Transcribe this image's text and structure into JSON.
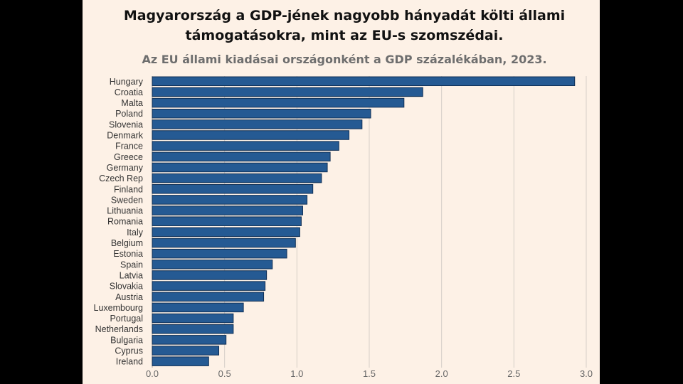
{
  "header": {
    "title_line1": "Magyarország a GDP-jének nagyobb hányadát költi állami",
    "title_line2": "támogatásokra, mint az EU-s szomszédai.",
    "subtitle": "Az EU állami kiadásai országonként a GDP százalékában, 2023."
  },
  "chart_data": {
    "type": "bar",
    "orientation": "horizontal",
    "categories": [
      "Hungary",
      "Croatia",
      "Malta",
      "Poland",
      "Slovenia",
      "Denmark",
      "France",
      "Greece",
      "Germany",
      "Czech Rep",
      "Finland",
      "Sweden",
      "Lithuania",
      "Romania",
      "Italy",
      "Belgium",
      "Estonia",
      "Spain",
      "Latvia",
      "Slovakia",
      "Austria",
      "Luxembourg",
      "Portugal",
      "Netherlands",
      "Bulgaria",
      "Cyprus",
      "Ireland"
    ],
    "values": [
      2.92,
      1.87,
      1.74,
      1.51,
      1.45,
      1.36,
      1.29,
      1.23,
      1.21,
      1.17,
      1.11,
      1.07,
      1.04,
      1.03,
      1.02,
      0.99,
      0.93,
      0.83,
      0.79,
      0.78,
      0.77,
      0.63,
      0.56,
      0.56,
      0.51,
      0.46,
      0.39
    ],
    "xlim": [
      0,
      3
    ],
    "xticks": [
      "0.0",
      "0.5",
      "1.0",
      "1.5",
      "2.0",
      "2.5",
      "3.0"
    ],
    "grid": true,
    "bar_color": "#255a93"
  }
}
